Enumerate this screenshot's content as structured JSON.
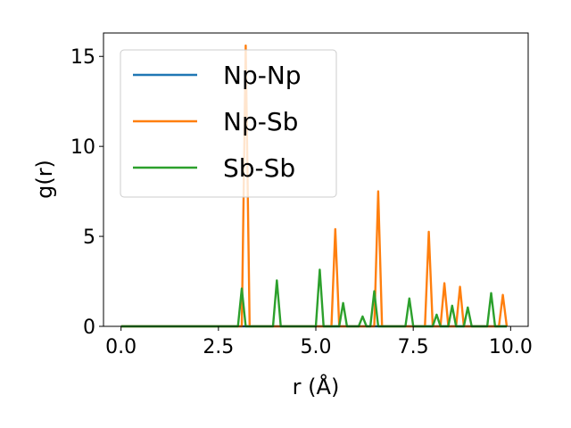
{
  "chart_data": {
    "type": "line",
    "xlabel": "r (Å)",
    "ylabel": "g(r)",
    "xlim": [
      -0.45,
      10.45
    ],
    "ylim": [
      0,
      16.3
    ],
    "xticks": [
      0.0,
      2.5,
      5.0,
      7.5,
      10.0
    ],
    "xtick_labels": [
      "0.0",
      "2.5",
      "5.0",
      "7.5",
      "10.0"
    ],
    "yticks": [
      0,
      5,
      10,
      15
    ],
    "ytick_labels": [
      "0",
      "5",
      "10",
      "15"
    ],
    "grid": false,
    "legend_position": "upper-left",
    "series": [
      {
        "name": "Np-Np",
        "color": "#1f77b4",
        "points": [
          [
            0.0,
            0
          ],
          [
            9.9,
            0
          ]
        ]
      },
      {
        "name": "Np-Sb",
        "color": "#ff7f0e",
        "points": [
          [
            0.0,
            0
          ],
          [
            3.1,
            0
          ],
          [
            3.2,
            15.6
          ],
          [
            3.3,
            0
          ],
          [
            5.4,
            0
          ],
          [
            5.5,
            5.4
          ],
          [
            5.6,
            0
          ],
          [
            6.5,
            0
          ],
          [
            6.6,
            7.5
          ],
          [
            6.7,
            0
          ],
          [
            7.8,
            0
          ],
          [
            7.9,
            5.25
          ],
          [
            8.0,
            0
          ],
          [
            8.2,
            0
          ],
          [
            8.3,
            2.4
          ],
          [
            8.4,
            0
          ],
          [
            8.6,
            0
          ],
          [
            8.7,
            2.2
          ],
          [
            8.8,
            0
          ],
          [
            9.7,
            0
          ],
          [
            9.8,
            1.75
          ],
          [
            9.9,
            0
          ]
        ]
      },
      {
        "name": "Sb-Sb",
        "color": "#2ca02c",
        "points": [
          [
            0.0,
            0
          ],
          [
            3.0,
            0
          ],
          [
            3.1,
            2.1
          ],
          [
            3.2,
            0
          ],
          [
            3.9,
            0
          ],
          [
            4.0,
            2.55
          ],
          [
            4.1,
            0
          ],
          [
            5.0,
            0
          ],
          [
            5.1,
            3.15
          ],
          [
            5.2,
            0
          ],
          [
            5.6,
            0
          ],
          [
            5.7,
            1.3
          ],
          [
            5.8,
            0
          ],
          [
            6.1,
            0
          ],
          [
            6.2,
            0.55
          ],
          [
            6.3,
            0
          ],
          [
            6.4,
            0
          ],
          [
            6.5,
            1.95
          ],
          [
            6.6,
            0
          ],
          [
            7.3,
            0
          ],
          [
            7.4,
            1.55
          ],
          [
            7.5,
            0
          ],
          [
            8.0,
            0
          ],
          [
            8.1,
            0.65
          ],
          [
            8.2,
            0
          ],
          [
            8.4,
            0
          ],
          [
            8.5,
            1.15
          ],
          [
            8.6,
            0
          ],
          [
            8.8,
            0
          ],
          [
            8.9,
            1.05
          ],
          [
            9.0,
            0
          ],
          [
            9.4,
            0
          ],
          [
            9.5,
            1.85
          ],
          [
            9.6,
            0
          ],
          [
            9.9,
            0
          ]
        ]
      }
    ]
  }
}
